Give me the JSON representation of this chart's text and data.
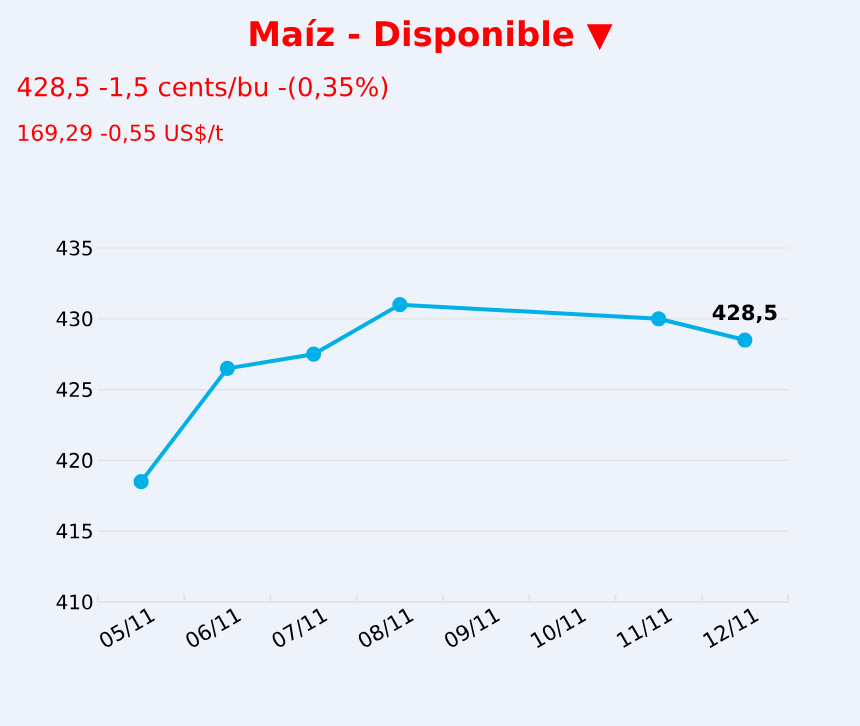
{
  "chart_data": {
    "type": "line",
    "title": "Maíz - Disponible ▼",
    "subtitle": "428,5 -1,5 cents/bu -(0,35%)",
    "categories": [
      "05/11",
      "06/11",
      "07/11",
      "08/11",
      "09/11",
      "10/11",
      "11/11",
      "12/11"
    ],
    "series": [
      {
        "color": "#00b0e6",
        "values": [
          418.5,
          426.5,
          427.5,
          431,
          null,
          null,
          430,
          428.5
        ]
      }
    ],
    "annotations": [
      "169,29 -0,55 US$/t",
      {
        "text": "428,5",
        "x": "12/11",
        "y": 428.5
      }
    ],
    "ylim": [
      410,
      435
    ],
    "yticks": [
      410,
      415,
      420,
      425,
      430,
      435
    ],
    "grid": "y",
    "marker": "circle",
    "line_style": "solid"
  }
}
